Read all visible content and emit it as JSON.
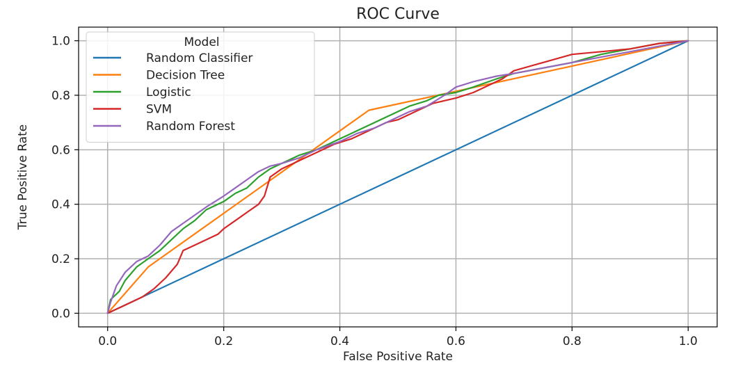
{
  "chart_data": {
    "type": "line",
    "title": "ROC Curve",
    "xlabel": "False Positive Rate",
    "ylabel": "True Positive Rate",
    "xlim": [
      -0.05,
      1.05
    ],
    "ylim": [
      -0.05,
      1.05
    ],
    "xticks": [
      "0.0",
      "0.2",
      "0.4",
      "0.6",
      "0.8",
      "1.0"
    ],
    "yticks": [
      "0.0",
      "0.2",
      "0.4",
      "0.6",
      "0.8",
      "1.0"
    ],
    "grid": true,
    "legend": {
      "title": "Model",
      "placement": "upper-left"
    },
    "series": [
      {
        "name": "Random Classifier",
        "color": "#1f77b4",
        "x": [
          0.0,
          1.0
        ],
        "y": [
          0.0,
          1.0
        ]
      },
      {
        "name": "Decision Tree",
        "color": "#ff7f0e",
        "x": [
          0.0,
          0.07,
          0.45,
          1.0
        ],
        "y": [
          0.0,
          0.17,
          0.745,
          1.0
        ]
      },
      {
        "name": "Logistic",
        "color": "#2ca02c",
        "x": [
          0.0,
          0.005,
          0.02,
          0.03,
          0.05,
          0.07,
          0.09,
          0.11,
          0.13,
          0.15,
          0.17,
          0.2,
          0.22,
          0.24,
          0.26,
          0.28,
          0.3,
          0.33,
          0.36,
          0.4,
          0.43,
          0.46,
          0.49,
          0.52,
          0.55,
          0.57,
          0.6,
          0.63,
          0.67,
          0.7,
          0.75,
          0.8,
          0.85,
          0.9,
          0.95,
          1.0
        ],
        "y": [
          0.0,
          0.05,
          0.08,
          0.12,
          0.17,
          0.2,
          0.23,
          0.27,
          0.31,
          0.34,
          0.38,
          0.41,
          0.44,
          0.46,
          0.5,
          0.53,
          0.55,
          0.58,
          0.6,
          0.64,
          0.67,
          0.7,
          0.73,
          0.76,
          0.78,
          0.8,
          0.81,
          0.83,
          0.86,
          0.88,
          0.9,
          0.92,
          0.95,
          0.97,
          0.99,
          1.0
        ]
      },
      {
        "name": "SVM",
        "color": "#d62728",
        "x": [
          0.0,
          0.03,
          0.06,
          0.08,
          0.1,
          0.12,
          0.13,
          0.15,
          0.17,
          0.19,
          0.2,
          0.22,
          0.24,
          0.26,
          0.27,
          0.28,
          0.3,
          0.33,
          0.36,
          0.39,
          0.42,
          0.45,
          0.48,
          0.5,
          0.53,
          0.56,
          0.58,
          0.6,
          0.63,
          0.66,
          0.68,
          0.7,
          0.75,
          0.8,
          0.85,
          0.9,
          0.95,
          1.0
        ],
        "y": [
          0.0,
          0.03,
          0.06,
          0.09,
          0.13,
          0.18,
          0.23,
          0.25,
          0.27,
          0.29,
          0.31,
          0.34,
          0.37,
          0.4,
          0.43,
          0.5,
          0.53,
          0.56,
          0.59,
          0.62,
          0.64,
          0.67,
          0.7,
          0.71,
          0.74,
          0.77,
          0.78,
          0.79,
          0.81,
          0.84,
          0.86,
          0.89,
          0.92,
          0.95,
          0.96,
          0.97,
          0.99,
          1.0
        ]
      },
      {
        "name": "Random Forest",
        "color": "#9467bd",
        "x": [
          0.0,
          0.005,
          0.015,
          0.03,
          0.05,
          0.07,
          0.09,
          0.11,
          0.13,
          0.15,
          0.17,
          0.2,
          0.22,
          0.24,
          0.26,
          0.28,
          0.3,
          0.33,
          0.36,
          0.4,
          0.43,
          0.46,
          0.49,
          0.52,
          0.55,
          0.58,
          0.6,
          0.63,
          0.67,
          0.7,
          0.75,
          0.8,
          0.85,
          0.9,
          0.95,
          1.0
        ],
        "y": [
          0.0,
          0.04,
          0.1,
          0.15,
          0.19,
          0.21,
          0.25,
          0.3,
          0.33,
          0.36,
          0.39,
          0.43,
          0.46,
          0.49,
          0.52,
          0.54,
          0.55,
          0.57,
          0.6,
          0.63,
          0.66,
          0.68,
          0.71,
          0.74,
          0.76,
          0.8,
          0.83,
          0.85,
          0.87,
          0.88,
          0.9,
          0.92,
          0.94,
          0.96,
          0.98,
          1.0
        ]
      }
    ]
  }
}
